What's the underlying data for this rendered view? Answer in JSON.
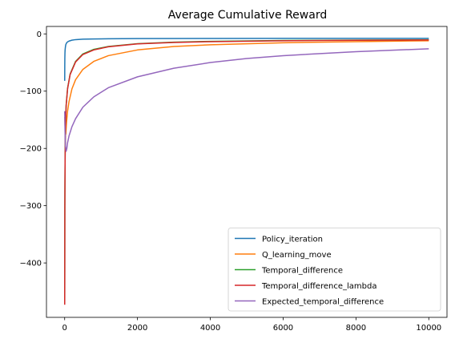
{
  "chart_data": {
    "type": "line",
    "title": "Average Cumulative Reward",
    "xlabel": "",
    "ylabel": "",
    "xlim": [
      -500,
      10500
    ],
    "ylim": [
      -495,
      13
    ],
    "xticks": [
      0,
      2000,
      4000,
      6000,
      8000,
      10000
    ],
    "yticks": [
      0,
      -100,
      -200,
      -300,
      -400
    ],
    "xtick_labels": [
      "0",
      "2000",
      "4000",
      "6000",
      "8000",
      "10000"
    ],
    "ytick_labels": [
      "0",
      "−100",
      "−200",
      "−300",
      "−400"
    ],
    "grid": false,
    "legend_position": "lower-right",
    "series": [
      {
        "name": "Policy_iteration",
        "color": "#1f77b4",
        "x": [
          1,
          2,
          3,
          5,
          8,
          12,
          20,
          30,
          50,
          80,
          120,
          200,
          300,
          500,
          800,
          1200,
          2000,
          4000,
          6000,
          8000,
          10000
        ],
        "y": [
          -82,
          -70,
          -55,
          -42,
          -33,
          -28,
          -23,
          -19,
          -16,
          -14,
          -12.5,
          -11,
          -10,
          -9.2,
          -8.8,
          -8.5,
          -8.2,
          -8.0,
          -7.9,
          -7.8,
          -7.8
        ]
      },
      {
        "name": "Q_learning_move",
        "color": "#ff7f0e",
        "x": [
          1,
          10,
          20,
          30,
          50,
          80,
          120,
          200,
          300,
          500,
          800,
          1200,
          2000,
          3000,
          4000,
          6000,
          8000,
          10000
        ],
        "y": [
          -145,
          -160,
          -172,
          -175,
          -155,
          -135,
          -118,
          -96,
          -80,
          -62,
          -48,
          -38,
          -28,
          -22,
          -19,
          -15.5,
          -13.5,
          -12
        ]
      },
      {
        "name": "Temporal_difference",
        "color": "#2ca02c",
        "x": [
          1,
          3,
          5,
          8,
          12,
          20,
          40,
          80,
          150,
          300,
          500,
          800,
          1200,
          2000,
          3000,
          4000,
          6000,
          8000,
          10000
        ],
        "y": [
          -470,
          -400,
          -300,
          -260,
          -220,
          -165,
          -125,
          -95,
          -70,
          -48,
          -35,
          -27,
          -22,
          -17,
          -14.5,
          -13,
          -11.5,
          -10.8,
          -10.3
        ]
      },
      {
        "name": "Temporal_difference_lambda",
        "color": "#d62728",
        "x": [
          1,
          3,
          5,
          8,
          12,
          20,
          40,
          80,
          150,
          300,
          500,
          800,
          1200,
          2000,
          3000,
          4000,
          6000,
          8000,
          10000
        ],
        "y": [
          -473,
          -405,
          -305,
          -262,
          -222,
          -167,
          -126,
          -96,
          -71,
          -49,
          -36,
          -28,
          -22.5,
          -17.5,
          -15,
          -13.5,
          -12,
          -11.2,
          -10.6
        ]
      },
      {
        "name": "Expected_temporal_difference",
        "color": "#9467bd",
        "x": [
          1,
          10,
          20,
          40,
          60,
          80,
          120,
          200,
          300,
          500,
          800,
          1200,
          2000,
          3000,
          4000,
          5000,
          6000,
          8000,
          10000
        ],
        "y": [
          -135,
          -170,
          -195,
          -205,
          -200,
          -190,
          -178,
          -162,
          -148,
          -128,
          -110,
          -94,
          -75,
          -60,
          -50,
          -43,
          -38,
          -31,
          -26
        ]
      }
    ]
  }
}
